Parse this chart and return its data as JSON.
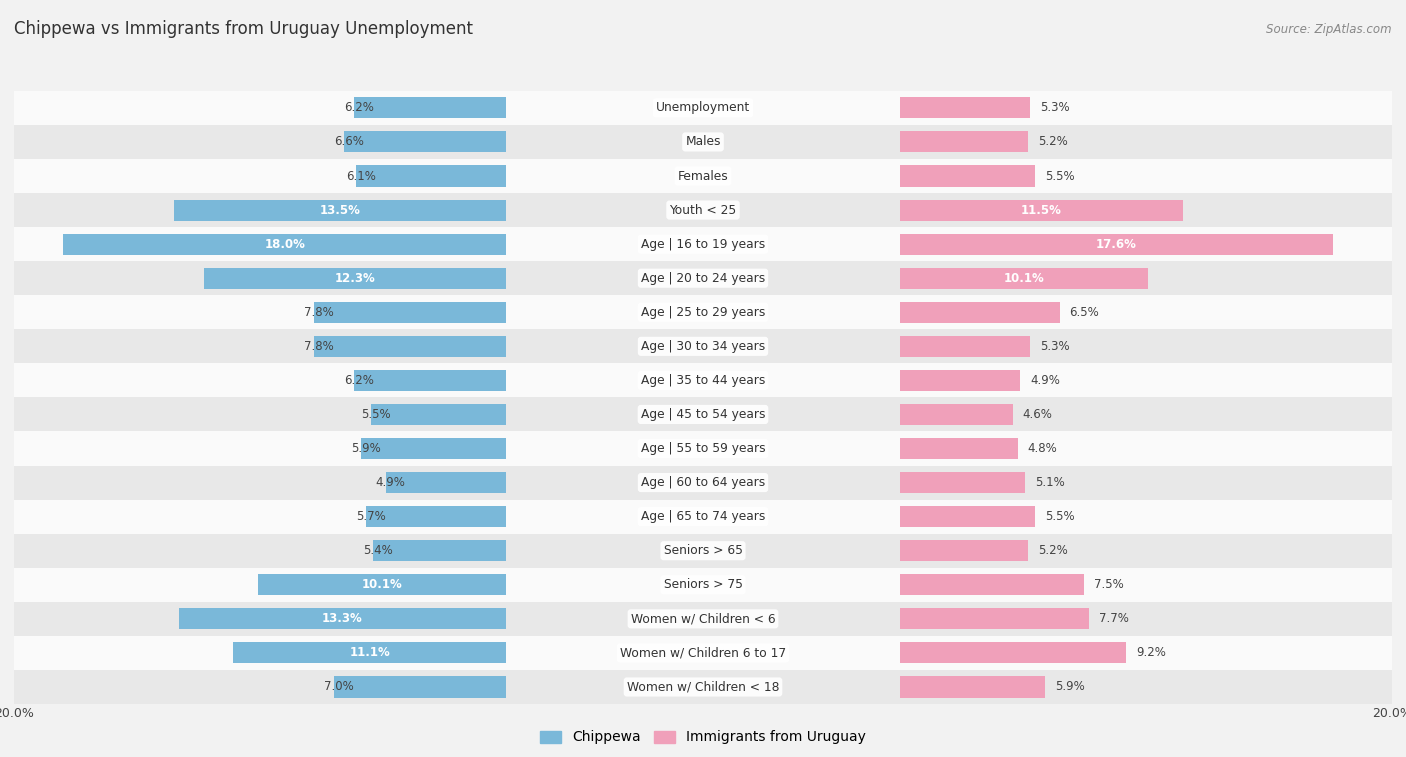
{
  "title": "Chippewa vs Immigrants from Uruguay Unemployment",
  "source": "Source: ZipAtlas.com",
  "categories": [
    "Unemployment",
    "Males",
    "Females",
    "Youth < 25",
    "Age | 16 to 19 years",
    "Age | 20 to 24 years",
    "Age | 25 to 29 years",
    "Age | 30 to 34 years",
    "Age | 35 to 44 years",
    "Age | 45 to 54 years",
    "Age | 55 to 59 years",
    "Age | 60 to 64 years",
    "Age | 65 to 74 years",
    "Seniors > 65",
    "Seniors > 75",
    "Women w/ Children < 6",
    "Women w/ Children 6 to 17",
    "Women w/ Children < 18"
  ],
  "chippewa": [
    6.2,
    6.6,
    6.1,
    13.5,
    18.0,
    12.3,
    7.8,
    7.8,
    6.2,
    5.5,
    5.9,
    4.9,
    5.7,
    5.4,
    10.1,
    13.3,
    11.1,
    7.0
  ],
  "uruguay": [
    5.3,
    5.2,
    5.5,
    11.5,
    17.6,
    10.1,
    6.5,
    5.3,
    4.9,
    4.6,
    4.8,
    5.1,
    5.5,
    5.2,
    7.5,
    7.7,
    9.2,
    5.9
  ],
  "chippewa_color": "#7ab8d9",
  "uruguay_color": "#f0a0ba",
  "background_color": "#f2f2f2",
  "row_bg_light": "#fafafa",
  "row_bg_dark": "#e8e8e8",
  "max_value": 20.0,
  "legend_chippewa": "Chippewa",
  "legend_uruguay": "Immigrants from Uruguay",
  "white_label_threshold": 9.5
}
